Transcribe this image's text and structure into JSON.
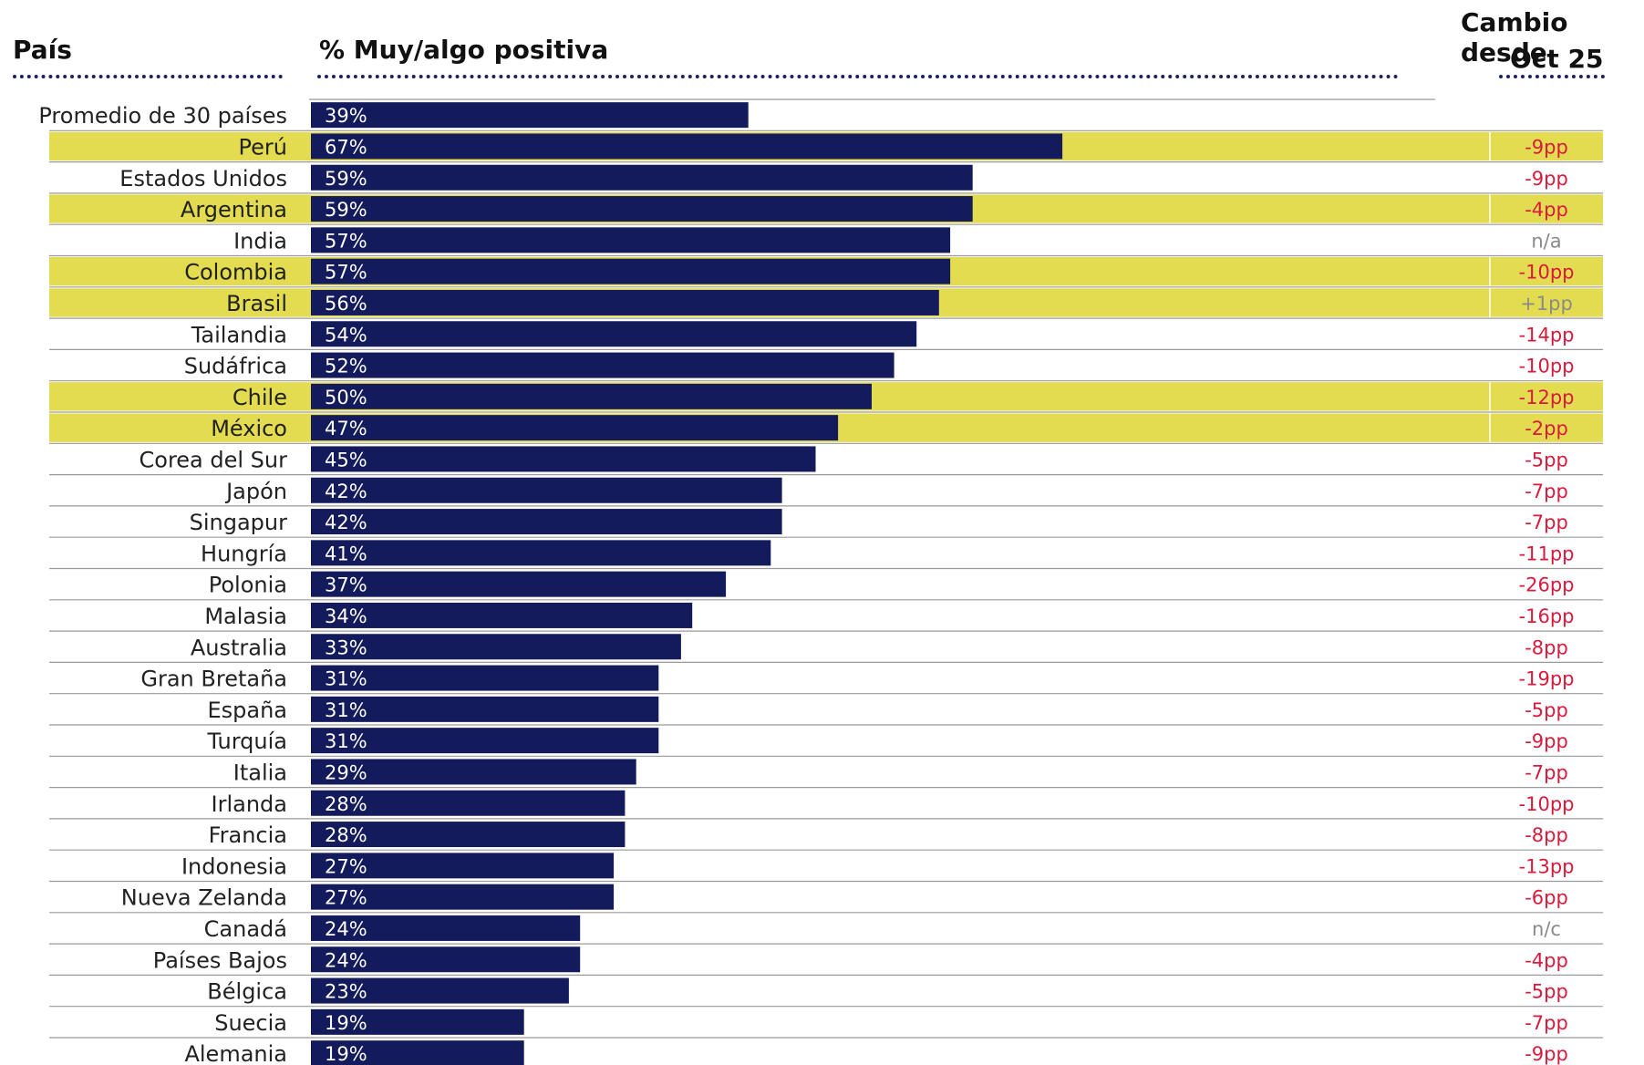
{
  "headers": {
    "country": "País",
    "value": "% Muy/algo positiva",
    "change_line1": "Cambio desde",
    "change_line2": "Oct 25"
  },
  "colors": {
    "bar": "#141b5c",
    "highlight": "#e3dc50",
    "negative": "#d81b3c",
    "neutral": "#8a8a8a",
    "grid": "#9a9a9a",
    "dots": "#1a2260"
  },
  "chart_data": {
    "type": "bar",
    "orientation": "horizontal",
    "title": "",
    "xlabel": "% Muy/algo positiva",
    "ylabel": "País",
    "xlim": [
      0,
      100
    ],
    "categories": [
      "Promedio de 30 países",
      "Perú",
      "Estados Unidos",
      "Argentina",
      "India",
      "Colombia",
      "Brasil",
      "Tailandia",
      "Sudáfrica",
      "Chile",
      "México",
      "Corea del Sur",
      "Japón",
      "Singapur",
      "Hungría",
      "Polonia",
      "Malasia",
      "Australia",
      "Gran Bretaña",
      "España",
      "Turquía",
      "Italia",
      "Irlanda",
      "Francia",
      "Indonesia",
      "Nueva Zelanda",
      "Canadá",
      "Países Bajos",
      "Bélgica",
      "Suecia",
      "Alemania"
    ],
    "values": [
      39,
      67,
      59,
      59,
      57,
      57,
      56,
      54,
      52,
      50,
      47,
      45,
      42,
      42,
      41,
      37,
      34,
      33,
      31,
      31,
      31,
      29,
      28,
      28,
      27,
      27,
      24,
      24,
      23,
      19,
      19
    ],
    "labels": [
      "39%",
      "67%",
      "59%",
      "59%",
      "57%",
      "57%",
      "56%",
      "54%",
      "52%",
      "50%",
      "47%",
      "45%",
      "42%",
      "42%",
      "41%",
      "37%",
      "34%",
      "33%",
      "31%",
      "31%",
      "31%",
      "29%",
      "28%",
      "28%",
      "27%",
      "27%",
      "24%",
      "24%",
      "23%",
      "19%",
      "19%"
    ],
    "change": [
      "",
      "-9pp",
      "-9pp",
      "-4pp",
      "n/a",
      "-10pp",
      "+1pp",
      "-14pp",
      "-10pp",
      "-12pp",
      "-2pp",
      "-5pp",
      "-7pp",
      "-7pp",
      "-11pp",
      "-26pp",
      "-16pp",
      "-8pp",
      "-19pp",
      "-5pp",
      "-9pp",
      "-7pp",
      "-10pp",
      "-8pp",
      "-13pp",
      "-6pp",
      "n/c",
      "-4pp",
      "-5pp",
      "-7pp",
      "-9pp"
    ],
    "highlighted": [
      "Perú",
      "Argentina",
      "Colombia",
      "Brasil",
      "Chile",
      "México"
    ]
  }
}
